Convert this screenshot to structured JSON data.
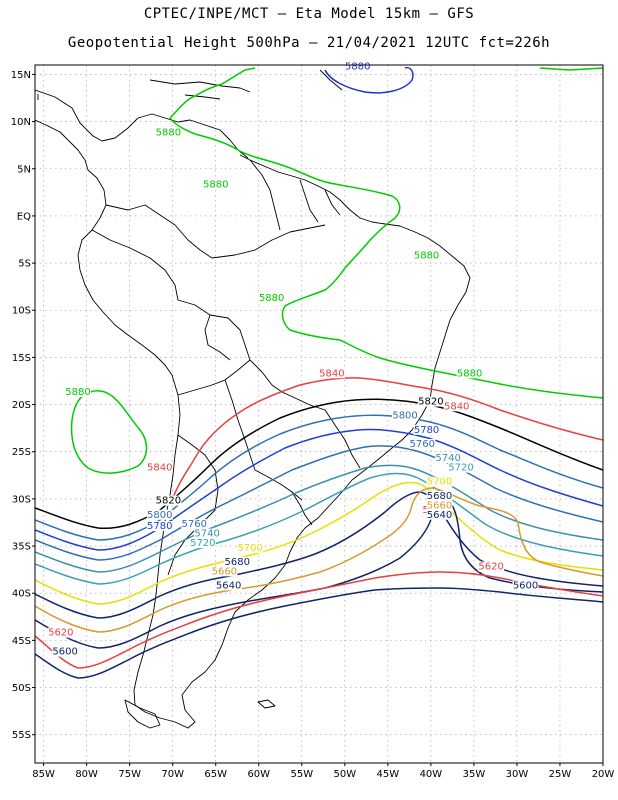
{
  "header": {
    "line1": "CPTEC/INPE/MCT –  Eta Model 15km – GFS",
    "line2": "Geopotential Height 500hPa – 21/04/2021 12UTC fct=226h"
  },
  "axes": {
    "lat_labels": [
      "15N",
      "10N",
      "5N",
      "EQ",
      "5S",
      "10S",
      "15S",
      "20S",
      "25S",
      "30S",
      "35S",
      "40S",
      "45S",
      "50S",
      "55S"
    ],
    "lon_labels": [
      "85W",
      "80W",
      "75W",
      "70W",
      "65W",
      "60W",
      "55W",
      "50W",
      "45W",
      "40W",
      "35W",
      "30W",
      "25W",
      "20W"
    ]
  },
  "map_data": {
    "type": "contour-map",
    "variable": "Geopotential Height 500hPa",
    "lon_range": [
      -86,
      -20
    ],
    "lat_range": [
      -58,
      16
    ],
    "grid": true,
    "contours": [
      {
        "level": "5880",
        "color": "#00cc00",
        "labels": [
          [
            -70.5,
            8.5
          ],
          [
            -58.5,
            -9
          ],
          [
            -65,
            3
          ],
          [
            -40.5,
            -4.5
          ],
          [
            -35.5,
            -17
          ],
          [
            -81,
            -19
          ],
          [
            -48.5,
            15.5
          ]
        ],
        "label_colors": [
          "#00cc00",
          "#00cc00",
          "#00cc00",
          "#00cc00",
          "#00cc00",
          "#00cc00",
          "#2233cc"
        ]
      },
      {
        "level": "5840",
        "color": "#e84040",
        "labels": [
          [
            -71.5,
            -27
          ],
          [
            -51.5,
            -17
          ],
          [
            -37,
            -20.5
          ],
          [
            -39.5,
            -31.5
          ]
        ]
      },
      {
        "level": "5820",
        "color": "#000000",
        "labels": [
          [
            -70.5,
            -30.5
          ],
          [
            -40,
            -20
          ]
        ]
      },
      {
        "level": "5800",
        "color": "#2e6fb5",
        "labels": [
          [
            -71.5,
            -32
          ],
          [
            -43,
            -21.5
          ]
        ]
      },
      {
        "level": "5780",
        "color": "#1f3fd0",
        "labels": [
          [
            -71.5,
            -33.2
          ],
          [
            -40.5,
            -23
          ]
        ]
      },
      {
        "level": "5760",
        "color": "#2e6fb5",
        "labels": [
          [
            -67.5,
            -33
          ],
          [
            -41,
            -24.5
          ]
        ]
      },
      {
        "level": "5740",
        "color": "#3a8fb0",
        "labels": [
          [
            -66,
            -34
          ],
          [
            -38,
            -26
          ]
        ]
      },
      {
        "level": "5720",
        "color": "#3aa0b8",
        "labels": [
          [
            -66.5,
            -35
          ],
          [
            -36.5,
            -27
          ]
        ]
      },
      {
        "level": "5700",
        "color": "#e8e000",
        "labels": [
          [
            -61,
            -35.5
          ],
          [
            -39,
            -28.5
          ]
        ]
      },
      {
        "level": "5680",
        "color": "#12246b",
        "labels": [
          [
            -62.5,
            -37
          ],
          [
            -39,
            -30
          ]
        ]
      },
      {
        "level": "5660",
        "color": "#d89a2a",
        "labels": [
          [
            -64,
            -38
          ],
          [
            -39,
            -31
          ]
        ]
      },
      {
        "level": "5640",
        "color": "#12246b",
        "labels": [
          [
            -63.5,
            -39.5
          ],
          [
            -39,
            -32
          ]
        ]
      },
      {
        "level": "5620",
        "color": "#e84040",
        "labels": [
          [
            -83,
            -44.5
          ],
          [
            -33,
            -37.5
          ]
        ]
      },
      {
        "level": "5600",
        "color": "#12246b",
        "labels": [
          [
            -82.5,
            -46.5
          ],
          [
            -29,
            -39.5
          ]
        ]
      }
    ]
  }
}
